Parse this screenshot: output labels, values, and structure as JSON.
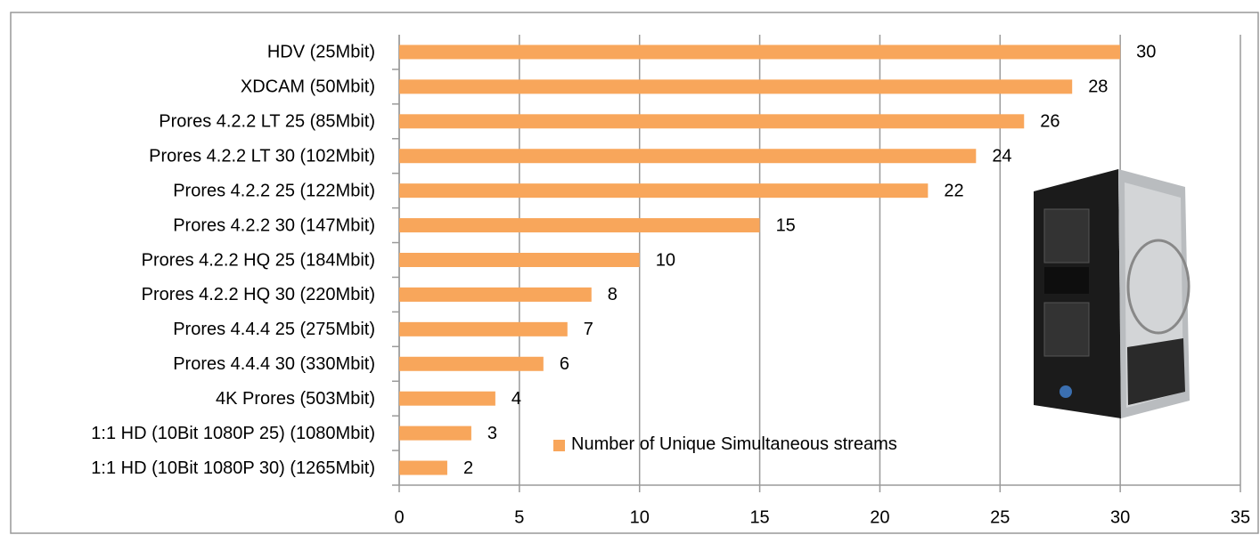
{
  "chart_data": {
    "type": "bar",
    "orientation": "horizontal",
    "categories": [
      "HDV (25Mbit)",
      "XDCAM (50Mbit)",
      "Prores 4.2.2 LT 25 (85Mbit)",
      "Prores 4.2.2 LT 30 (102Mbit)",
      "Prores 4.2.2 25 (122Mbit)",
      "Prores 4.2.2 30 (147Mbit)",
      "Prores 4.2.2 HQ 25 (184Mbit)",
      "Prores 4.2.2 HQ 30 (220Mbit)",
      "Prores 4.4.4 25 (275Mbit)",
      "Prores 4.4.4 30 (330Mbit)",
      "4K Prores (503Mbit)",
      "1:1 HD (10Bit 1080P 25) (1080Mbit)",
      "1:1 HD (10Bit 1080P 30) (1265Mbit)"
    ],
    "series": [
      {
        "name": "Number of Unique Simultaneous streams",
        "color": "#f8a65b",
        "values": [
          30,
          28,
          26,
          24,
          22,
          15,
          10,
          8,
          7,
          6,
          4,
          3,
          2
        ]
      }
    ],
    "xlim": [
      0,
      35
    ],
    "xticks": [
      0,
      5,
      10,
      15,
      20,
      25,
      30,
      35
    ],
    "grid": true,
    "legend": "bottom"
  }
}
